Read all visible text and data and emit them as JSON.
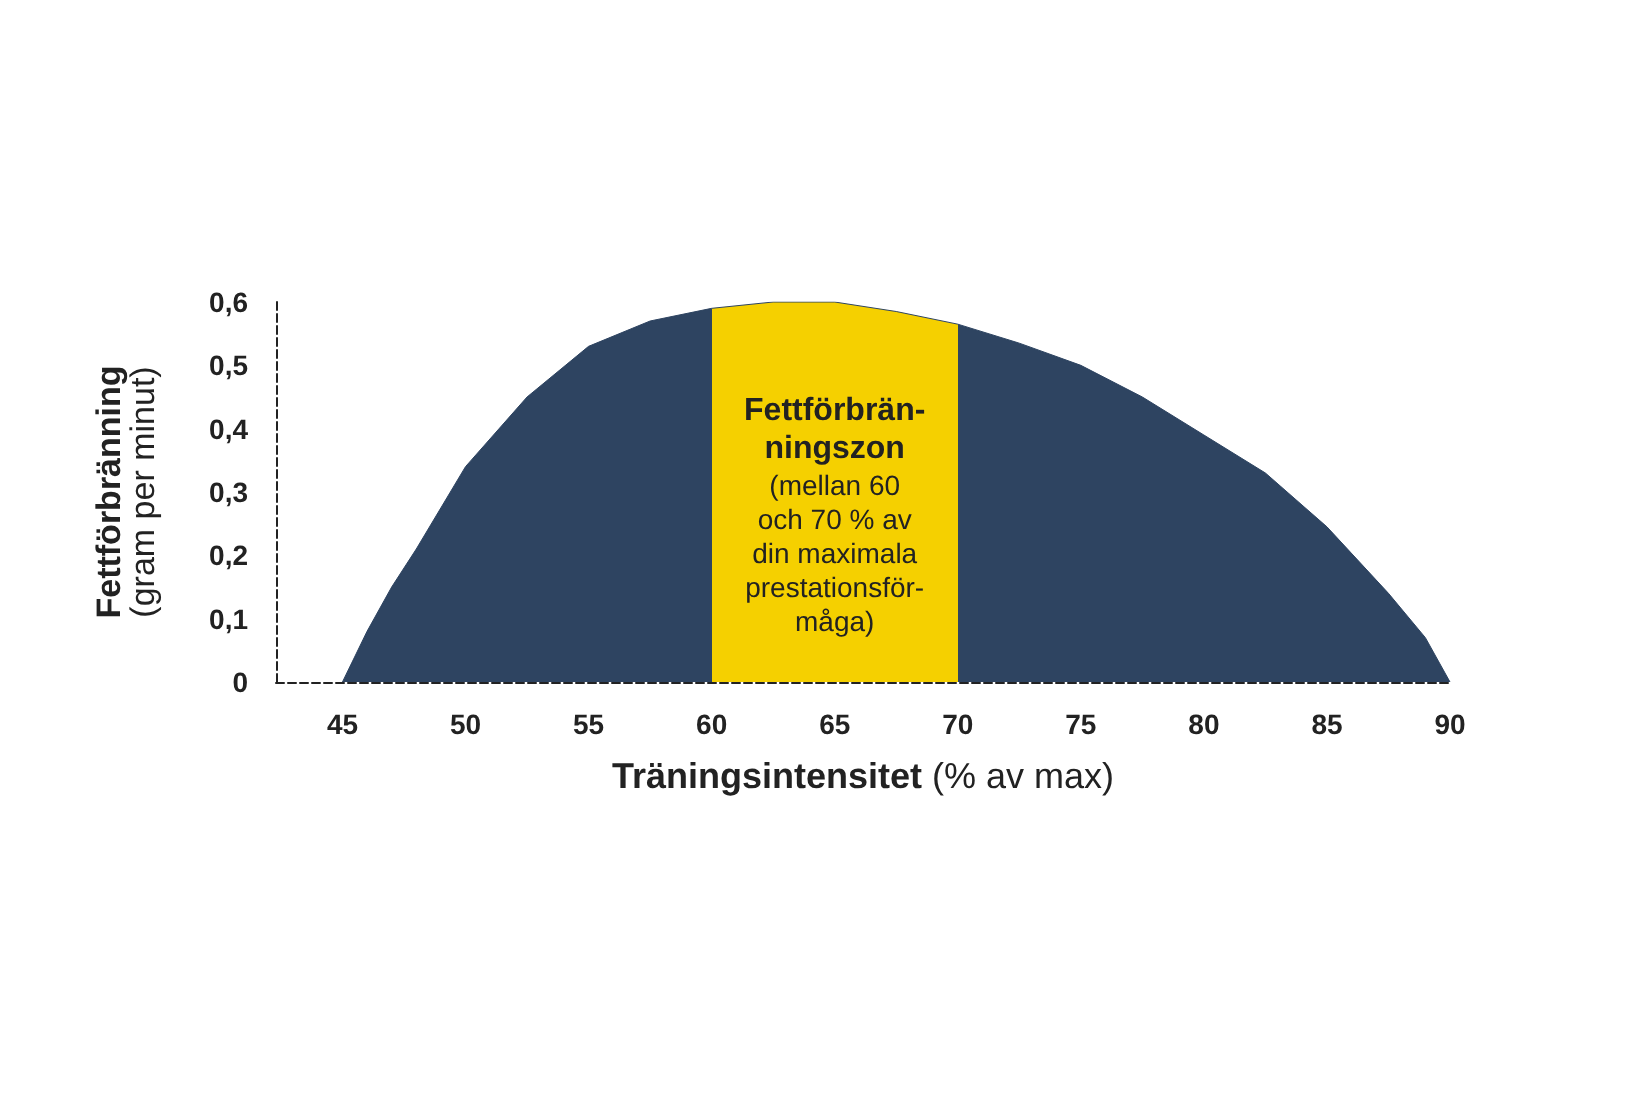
{
  "chart_data": {
    "type": "area",
    "xlabel": "Träningsintensitet (% av max)",
    "ylabel": "Fettförbränning\n(gram per minut)",
    "x": [
      45,
      46,
      47,
      48,
      50,
      52.5,
      55,
      57.5,
      60,
      62.5,
      65,
      67.5,
      70,
      72.5,
      75,
      77.5,
      80,
      82.5,
      85,
      87.5,
      89,
      90
    ],
    "series": [
      {
        "color": "#2e4461",
        "values": [
          0,
          0.08,
          0.15,
          0.21,
          0.34,
          0.45,
          0.53,
          0.57,
          0.59,
          0.6,
          0.6,
          0.585,
          0.565,
          0.535,
          0.5,
          0.45,
          0.39,
          0.33,
          0.245,
          0.14,
          0.07,
          0
        ]
      }
    ],
    "xlim": [
      42.3,
      90
    ],
    "xticks": [
      45,
      50,
      55,
      60,
      65,
      70,
      75,
      80,
      85,
      90
    ],
    "ylim": [
      0,
      0.6
    ],
    "yticks": [
      {
        "value": 0,
        "label": "0"
      },
      {
        "value": 0.1,
        "label": "0,1"
      },
      {
        "value": 0.2,
        "label": "0,2"
      },
      {
        "value": 0.3,
        "label": "0,3"
      },
      {
        "value": 0.4,
        "label": "0,4"
      },
      {
        "value": 0.5,
        "label": "0,5"
      },
      {
        "value": 0.6,
        "label": "0,6"
      }
    ],
    "bands": [
      {
        "axis": "x",
        "from": 60,
        "to": 70,
        "color": "#f5d000",
        "label": "Fettförbrän-\nningszon\n(mellan 60\noch 70 % av\ndin maximala\nprestationsför-\nmåga)"
      }
    ],
    "grid": false,
    "marker": "none"
  }
}
